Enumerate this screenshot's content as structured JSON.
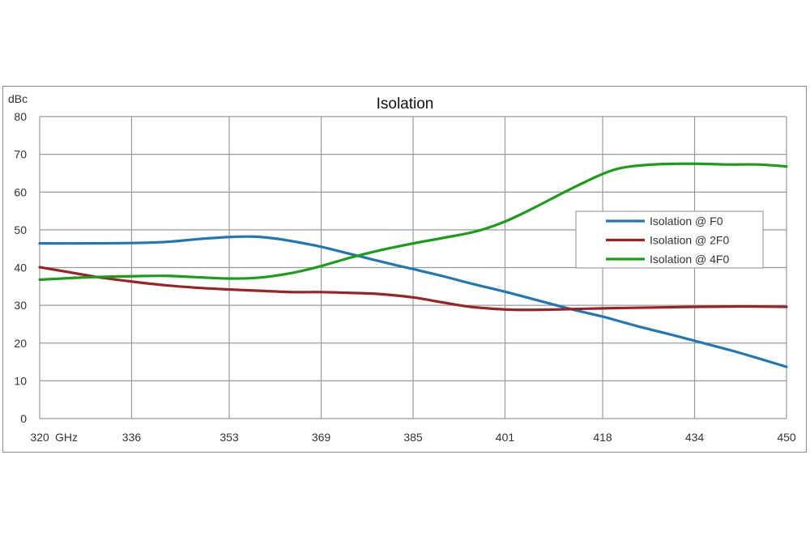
{
  "chart_data": {
    "type": "line",
    "title": "Isolation",
    "ylabel": "dBc",
    "xlabel": "",
    "x_unit_label": "GHz",
    "ylim": [
      0,
      80
    ],
    "xlim": [
      320,
      450
    ],
    "x_ticks": [
      320,
      336,
      353,
      369,
      385,
      401,
      418,
      434,
      450
    ],
    "y_ticks": [
      0,
      10,
      20,
      30,
      40,
      50,
      60,
      70,
      80
    ],
    "grid": true,
    "legend_position": "right",
    "series": [
      {
        "name": "Isolation @ F0",
        "color": "#1f77b4",
        "points": [
          [
            320,
            46.4
          ],
          [
            328,
            46.4
          ],
          [
            336,
            46.5
          ],
          [
            342,
            46.8
          ],
          [
            348,
            47.6
          ],
          [
            353,
            48.1
          ],
          [
            357,
            48.2
          ],
          [
            361,
            47.7
          ],
          [
            365,
            46.7
          ],
          [
            369,
            45.5
          ],
          [
            373,
            44
          ],
          [
            377,
            42.5
          ],
          [
            381,
            41
          ],
          [
            385,
            39.6
          ],
          [
            390,
            37.8
          ],
          [
            395,
            35.8
          ],
          [
            401,
            33.6
          ],
          [
            407,
            31.2
          ],
          [
            413,
            28.8
          ],
          [
            418,
            27
          ],
          [
            424,
            24.5
          ],
          [
            430,
            22.2
          ],
          [
            434,
            20.6
          ],
          [
            440,
            18.2
          ],
          [
            445,
            16
          ],
          [
            450,
            13.7
          ]
        ]
      },
      {
        "name": "Isolation @ 2F0",
        "color": "#9b2226",
        "points": [
          [
            320,
            40.1
          ],
          [
            325,
            38.8
          ],
          [
            330,
            37.5
          ],
          [
            336,
            36.3
          ],
          [
            342,
            35.3
          ],
          [
            348,
            34.6
          ],
          [
            353,
            34.2
          ],
          [
            359,
            33.8
          ],
          [
            364,
            33.5
          ],
          [
            369,
            33.5
          ],
          [
            374,
            33.3
          ],
          [
            379,
            33
          ],
          [
            385,
            32.1
          ],
          [
            390,
            30.8
          ],
          [
            395,
            29.6
          ],
          [
            401,
            28.9
          ],
          [
            405,
            28.8
          ],
          [
            410,
            28.9
          ],
          [
            418,
            29.2
          ],
          [
            426,
            29.4
          ],
          [
            434,
            29.6
          ],
          [
            442,
            29.7
          ],
          [
            450,
            29.6
          ]
        ]
      },
      {
        "name": "Isolation @ 4F0",
        "color": "#1a9e1a",
        "points": [
          [
            320,
            36.8
          ],
          [
            328,
            37.4
          ],
          [
            336,
            37.7
          ],
          [
            342,
            37.8
          ],
          [
            348,
            37.4
          ],
          [
            353,
            37.1
          ],
          [
            358,
            37.3
          ],
          [
            364,
            38.6
          ],
          [
            369,
            40.4
          ],
          [
            374,
            42.6
          ],
          [
            379,
            44.5
          ],
          [
            385,
            46.4
          ],
          [
            390,
            47.8
          ],
          [
            396,
            49.6
          ],
          [
            401,
            52.2
          ],
          [
            406,
            55.8
          ],
          [
            412,
            60.5
          ],
          [
            418,
            64.8
          ],
          [
            422,
            66.6
          ],
          [
            428,
            67.4
          ],
          [
            434,
            67.5
          ],
          [
            440,
            67.3
          ],
          [
            445,
            67.3
          ],
          [
            450,
            66.8
          ]
        ]
      }
    ]
  }
}
